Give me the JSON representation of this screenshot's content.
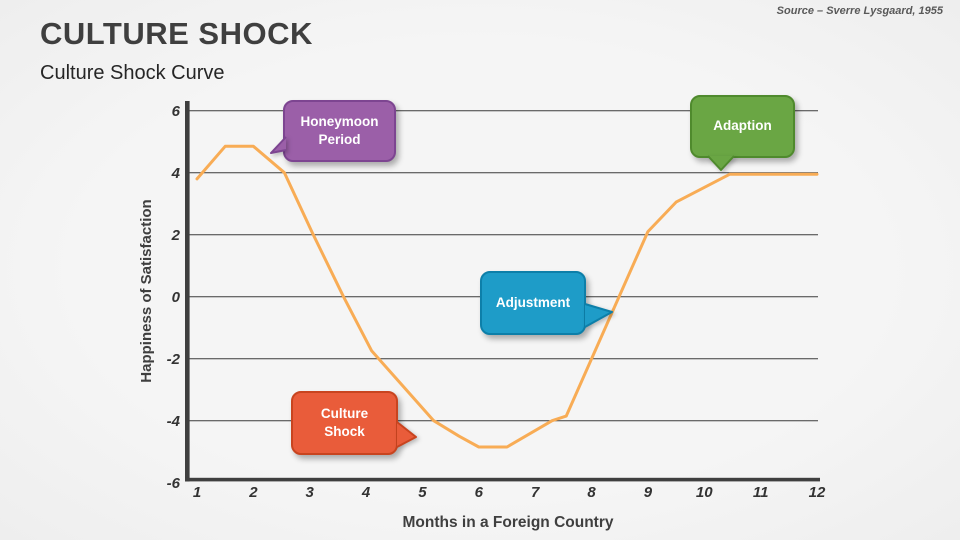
{
  "slide": {
    "title": "CULTURE SHOCK",
    "subtitle": "Culture Shock Curve",
    "source": "Source – Sverre Lysgaard, 1955"
  },
  "colors": {
    "background": "#F2F2F2",
    "axis": "#3F3F3F",
    "gridline": "#3C3C3C",
    "tick_text": "#333333",
    "axis_title_text": "#3F3F3F",
    "curve": "#F8AC55"
  },
  "callouts": [
    {
      "id": "honeymoon",
      "label": "Honeymoon Period",
      "fill": "#9B5FA8",
      "border": "#7D4591",
      "text_color": "#FFFFFF"
    },
    {
      "id": "adaption",
      "label": "Adaption",
      "fill": "#6AA644",
      "border": "#4F8A2D",
      "text_color": "#FFFFFF"
    },
    {
      "id": "adjustment",
      "label": "Adjustment",
      "fill": "#1E9CC8",
      "border": "#0D7FA9",
      "text_color": "#FFFFFF"
    },
    {
      "id": "cultureshock",
      "label": "Culture Shock",
      "fill": "#E95C3A",
      "border": "#C8441F",
      "text_color": "#FFFFFF"
    }
  ],
  "chart_data": {
    "type": "line",
    "title": "",
    "xlabel": "Months in a Foreign Country",
    "ylabel": "Happiness of Satisfaction",
    "xlim": [
      1,
      12
    ],
    "ylim": [
      -6,
      6
    ],
    "x_ticks": [
      1,
      2,
      3,
      4,
      5,
      6,
      7,
      8,
      9,
      10,
      11,
      12
    ],
    "y_ticks": [
      6,
      4,
      2,
      0,
      -2,
      -4,
      -6
    ],
    "gridline_values": [
      6,
      4,
      2,
      0,
      -2,
      -4
    ],
    "grid": true,
    "legend": false,
    "series": [
      {
        "name": "Culture Shock Curve",
        "color": "#F8AC55",
        "points": [
          [
            1,
            3.8
          ],
          [
            1.5,
            4.85
          ],
          [
            2.0,
            4.85
          ],
          [
            2.55,
            4.0
          ],
          [
            3.05,
            2.05
          ],
          [
            3.6,
            0.0
          ],
          [
            4.1,
            -1.75
          ],
          [
            5.2,
            -4.0
          ],
          [
            5.65,
            -4.5
          ],
          [
            6.0,
            -4.85
          ],
          [
            6.5,
            -4.85
          ],
          [
            7.3,
            -4.0
          ],
          [
            7.55,
            -3.85
          ],
          [
            9.0,
            2.1
          ],
          [
            9.5,
            3.05
          ],
          [
            10.45,
            3.95
          ],
          [
            12,
            3.95
          ]
        ]
      }
    ]
  }
}
